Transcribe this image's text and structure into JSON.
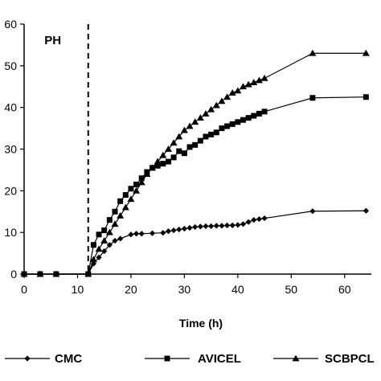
{
  "chart_data": {
    "type": "line",
    "title": "",
    "xlabel": "Time (h)",
    "ylabel": "",
    "xlim": [
      0,
      65
    ],
    "ylim": [
      0,
      60
    ],
    "x_ticks": [
      "0",
      "10",
      "20",
      "30",
      "40",
      "50",
      "60"
    ],
    "y_ticks": [
      "0",
      "10",
      "20",
      "30",
      "40",
      "50",
      "60"
    ],
    "grid": false,
    "legend_position": "bottom",
    "annotations": [
      {
        "text": "PH",
        "x": 2,
        "y": 55
      }
    ],
    "reference_line": {
      "type": "vertical-dashed",
      "x": 12
    },
    "series": [
      {
        "name": "CMC",
        "marker": "diamond",
        "color": "#000000",
        "x": [
          0,
          3,
          6,
          12,
          13,
          14,
          15,
          16,
          17,
          18,
          20,
          21,
          22,
          24,
          26,
          27,
          28,
          29,
          30,
          31,
          32,
          33,
          34,
          35,
          36,
          37,
          38,
          39,
          40,
          41,
          42,
          43,
          44,
          45,
          54,
          64
        ],
        "y": [
          0,
          0,
          0,
          0,
          2.5,
          4,
          5.5,
          7,
          8,
          8.5,
          9.5,
          9.7,
          9.7,
          9.8,
          9.9,
          10.3,
          10.5,
          10.7,
          10.9,
          11.1,
          11.3,
          11.4,
          11.5,
          11.5,
          11.6,
          11.6,
          11.7,
          11.7,
          11.8,
          12,
          12.5,
          13,
          13.2,
          13.4,
          15.1,
          15.2
        ]
      },
      {
        "name": "AVICEL",
        "marker": "square",
        "color": "#000000",
        "x": [
          0,
          3,
          6,
          12,
          13,
          14,
          15,
          16,
          17,
          18,
          19,
          20,
          21,
          22,
          23,
          24,
          25,
          26,
          27,
          28,
          29,
          30,
          31,
          32,
          33,
          34,
          35,
          36,
          37,
          38,
          39,
          40,
          41,
          42,
          43,
          44,
          45,
          54,
          64
        ],
        "y": [
          0,
          0,
          0,
          0,
          7,
          9.5,
          10.5,
          13,
          15,
          17.5,
          19,
          20.5,
          21.5,
          23,
          24.5,
          25.5,
          26,
          26.5,
          27,
          28,
          29.5,
          29,
          30.5,
          31,
          32,
          33,
          33.5,
          34,
          35,
          35.5,
          36,
          36.5,
          37,
          37.5,
          38,
          38.5,
          39,
          42.3,
          42.5
        ]
      },
      {
        "name": "SCBPCL",
        "marker": "triangle",
        "color": "#000000",
        "x": [
          0,
          3,
          6,
          12,
          13,
          14,
          15,
          16,
          17,
          18,
          19,
          20,
          21,
          22,
          23,
          24,
          25,
          26,
          27,
          28,
          29,
          30,
          31,
          32,
          33,
          34,
          35,
          36,
          37,
          38,
          39,
          40,
          41,
          42,
          43,
          44,
          45,
          54,
          64
        ],
        "y": [
          0,
          0,
          0,
          0,
          3.5,
          6,
          8,
          10,
          12,
          14,
          16,
          18,
          20,
          22,
          24,
          25.5,
          27,
          28.5,
          30,
          31.5,
          33,
          34.5,
          35.5,
          36.5,
          37.5,
          38.5,
          39.5,
          40.5,
          41.5,
          42.5,
          43.5,
          44,
          45,
          45.5,
          46,
          46.5,
          47,
          53,
          53
        ]
      }
    ]
  }
}
